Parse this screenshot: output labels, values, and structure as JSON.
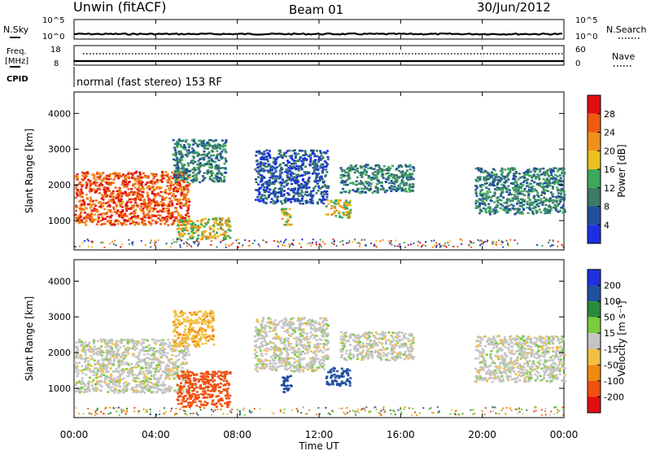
{
  "header": {
    "station": "Unwin (fitACF)",
    "beam": "Beam 01",
    "date": "30/Jun/2012"
  },
  "noise_panel": {
    "left_label": "N.Sky",
    "right_label": "N.Search",
    "left_ticks": [
      "10^5",
      "10^0"
    ],
    "right_ticks": [
      "10^5",
      "10^0"
    ]
  },
  "freq_panel": {
    "left_label_1": "Freq.",
    "left_label_2": "[MHz]",
    "cpid_label": "CPID",
    "right_label": "Nave",
    "left_ticks": [
      "18",
      "8"
    ],
    "right_ticks": [
      "60",
      "0"
    ]
  },
  "cpid_text": "normal (fast stereo) 153 RF",
  "colors": {
    "power_scale": [
      "#1b2fe0",
      "#1f4f9e",
      "#3c7a6a",
      "#3da85a",
      "#e8c020",
      "#f0901c",
      "#f05a10",
      "#e01010"
    ],
    "velocity_scale": [
      "#2030e0",
      "#2050a0",
      "#2a8a3a",
      "#7acc3c",
      "#c4c4c4",
      "#f2c040",
      "#f08a10",
      "#f05010",
      "#e01010"
    ]
  },
  "chart_data": [
    {
      "type": "heatmap",
      "name": "power",
      "ylabel": "Slant Range [km]",
      "ylim": [
        180,
        4600
      ],
      "xlim": [
        0,
        24
      ],
      "yticks": [
        "1000",
        "2000",
        "3000",
        "4000"
      ],
      "colorbar_label": "Power [dB]",
      "colorbar_ticks": [
        "4",
        "8",
        "12",
        "16",
        "20",
        "24",
        "28"
      ],
      "scale_range": [
        0,
        32
      ],
      "regions": [
        {
          "t0": 0.0,
          "t1": 5.6,
          "r0": 900,
          "r1": 2400,
          "level": 6
        },
        {
          "t0": 5.0,
          "t1": 7.6,
          "r0": 500,
          "r1": 1100,
          "level": 4
        },
        {
          "t0": 4.8,
          "t1": 7.4,
          "r0": 2100,
          "r1": 3300,
          "level": 2
        },
        {
          "t0": 8.8,
          "t1": 12.4,
          "r0": 1500,
          "r1": 3000,
          "level": 1
        },
        {
          "t0": 10.1,
          "t1": 10.6,
          "r0": 900,
          "r1": 1400,
          "level": 4
        },
        {
          "t0": 12.3,
          "t1": 13.5,
          "r0": 1100,
          "r1": 1600,
          "level": 4
        },
        {
          "t0": 13.0,
          "t1": 16.6,
          "r0": 1800,
          "r1": 2600,
          "level": 2
        },
        {
          "t0": 19.6,
          "t1": 24.0,
          "r0": 1200,
          "r1": 2500,
          "level": 2
        }
      ]
    },
    {
      "type": "heatmap",
      "name": "velocity",
      "ylabel": "Slant Range [km]",
      "ylim": [
        180,
        4600
      ],
      "xlim": [
        0,
        24
      ],
      "yticks": [
        "1000",
        "2000",
        "3000",
        "4000"
      ],
      "xticks": [
        "00:00",
        "04:00",
        "08:00",
        "12:00",
        "16:00",
        "20:00",
        "00:00"
      ],
      "xlabel": "Time UT",
      "colorbar_label": "Velocity [m s⁻¹]",
      "colorbar_ticks": [
        "200",
        "100",
        "50",
        "15",
        "-15",
        "-50",
        "-100",
        "-200"
      ],
      "regions": [
        {
          "t0": 0.0,
          "t1": 5.6,
          "r0": 900,
          "r1": 2400,
          "velocity": 0
        },
        {
          "t0": 5.0,
          "t1": 7.6,
          "r0": 500,
          "r1": 1500,
          "velocity": -180
        },
        {
          "t0": 4.8,
          "t1": 6.8,
          "r0": 2200,
          "r1": 3200,
          "velocity": -40
        },
        {
          "t0": 8.8,
          "t1": 12.4,
          "r0": 1500,
          "r1": 3000,
          "velocity": 0
        },
        {
          "t0": 10.1,
          "t1": 10.6,
          "r0": 900,
          "r1": 1400,
          "velocity": 120
        },
        {
          "t0": 12.3,
          "t1": 13.5,
          "r0": 1100,
          "r1": 1600,
          "velocity": 180
        },
        {
          "t0": 13.0,
          "t1": 16.6,
          "r0": 1800,
          "r1": 2600,
          "velocity": 0
        },
        {
          "t0": 19.6,
          "t1": 24.0,
          "r0": 1200,
          "r1": 2500,
          "velocity": 0
        }
      ]
    }
  ]
}
